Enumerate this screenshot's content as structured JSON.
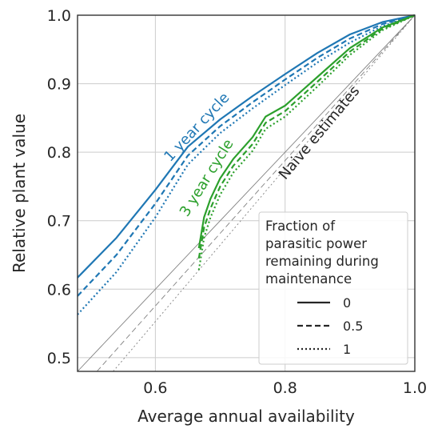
{
  "chart_data": {
    "type": "line",
    "xlabel": "Average annual availability",
    "ylabel": "Relative plant value",
    "xlim": [
      0.48,
      1.0
    ],
    "ylim": [
      0.48,
      1.0
    ],
    "xticks": [
      "0.6",
      "0.8",
      "1.0"
    ],
    "yticks": [
      "0.5",
      "0.6",
      "0.7",
      "0.8",
      "0.9",
      "1.0"
    ],
    "grid": true,
    "legend": {
      "title": "Fraction of parasitic power remaining during maintenance",
      "title_lines": [
        "Fraction of",
        "parasitic power",
        "remaining during",
        "maintenance"
      ],
      "placement": "lower-right",
      "entries": [
        {
          "label": "0",
          "dash": "solid"
        },
        {
          "label": "0.5",
          "dash": "dashed"
        },
        {
          "label": "1",
          "dash": "dotted"
        }
      ]
    },
    "annotations": [
      {
        "text": "1 year cycle",
        "color": "#1f77b4"
      },
      {
        "text": "3 year cycle",
        "color": "#2ca02c"
      },
      {
        "text": "Naive estimates",
        "color": "#262626"
      }
    ],
    "series": [
      {
        "group": "1 year cycle",
        "fraction": "0",
        "dash": "solid",
        "color": "#1f77b4",
        "x": [
          0.48,
          0.54,
          0.6,
          0.65,
          0.7,
          0.75,
          0.8,
          0.85,
          0.9,
          0.95,
          1.0
        ],
        "y": [
          0.617,
          0.675,
          0.745,
          0.808,
          0.848,
          0.882,
          0.914,
          0.945,
          0.972,
          0.99,
          1.0
        ]
      },
      {
        "group": "1 year cycle",
        "fraction": "0.5",
        "dash": "dashed",
        "color": "#1f77b4",
        "x": [
          0.48,
          0.54,
          0.6,
          0.65,
          0.7,
          0.75,
          0.8,
          0.85,
          0.9,
          0.95,
          1.0
        ],
        "y": [
          0.59,
          0.65,
          0.725,
          0.795,
          0.838,
          0.873,
          0.906,
          0.938,
          0.966,
          0.987,
          1.0
        ]
      },
      {
        "group": "1 year cycle",
        "fraction": "1",
        "dash": "dotted",
        "color": "#1f77b4",
        "x": [
          0.48,
          0.54,
          0.6,
          0.65,
          0.7,
          0.75,
          0.8,
          0.85,
          0.9,
          0.95,
          1.0
        ],
        "y": [
          0.563,
          0.625,
          0.705,
          0.782,
          0.828,
          0.864,
          0.898,
          0.931,
          0.96,
          0.984,
          1.0
        ]
      },
      {
        "group": "3 year cycle",
        "fraction": "0",
        "dash": "solid",
        "color": "#2ca02c",
        "x": [
          0.667,
          0.675,
          0.685,
          0.7,
          0.72,
          0.75,
          0.77,
          0.8,
          0.85,
          0.9,
          0.95,
          1.0
        ],
        "y": [
          0.66,
          0.705,
          0.732,
          0.762,
          0.79,
          0.822,
          0.852,
          0.868,
          0.91,
          0.952,
          0.982,
          1.0
        ]
      },
      {
        "group": "3 year cycle",
        "fraction": "0.5",
        "dash": "dashed",
        "color": "#2ca02c",
        "x": [
          0.667,
          0.675,
          0.685,
          0.7,
          0.72,
          0.75,
          0.77,
          0.8,
          0.85,
          0.9,
          0.95,
          1.0
        ],
        "y": [
          0.645,
          0.69,
          0.718,
          0.75,
          0.78,
          0.812,
          0.843,
          0.86,
          0.903,
          0.947,
          0.98,
          1.0
        ]
      },
      {
        "group": "3 year cycle",
        "fraction": "1",
        "dash": "dotted",
        "color": "#2ca02c",
        "x": [
          0.667,
          0.675,
          0.685,
          0.7,
          0.72,
          0.75,
          0.77,
          0.8,
          0.85,
          0.9,
          0.95,
          1.0
        ],
        "y": [
          0.628,
          0.675,
          0.705,
          0.738,
          0.77,
          0.802,
          0.834,
          0.852,
          0.896,
          0.942,
          0.978,
          1.0
        ]
      },
      {
        "group": "Naive estimates",
        "fraction": "0",
        "dash": "solid",
        "color": "#808080",
        "x": [
          0.48,
          1.0
        ],
        "y": [
          0.48,
          1.0
        ]
      },
      {
        "group": "Naive estimates",
        "fraction": "0.5",
        "dash": "dashed",
        "color": "#808080",
        "x": [
          0.51,
          1.0
        ],
        "y": [
          0.48,
          1.0
        ]
      },
      {
        "group": "Naive estimates",
        "fraction": "1",
        "dash": "dotted",
        "color": "#808080",
        "x": [
          0.535,
          1.0
        ],
        "y": [
          0.48,
          1.0
        ]
      }
    ]
  }
}
